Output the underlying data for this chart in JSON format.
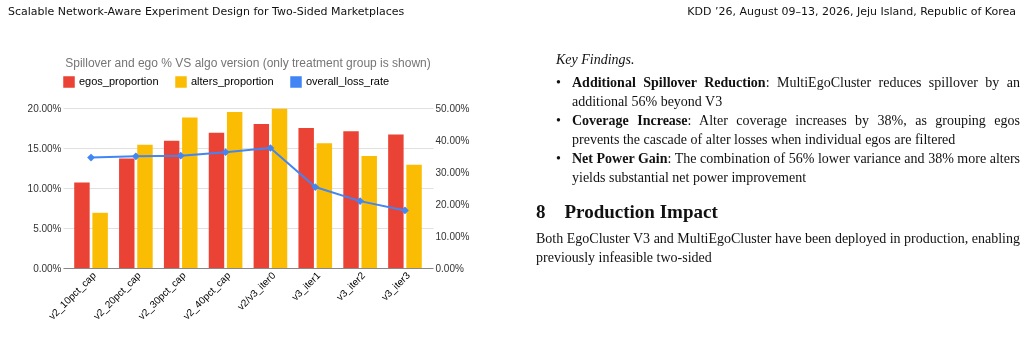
{
  "chart_data": [
    {
      "type": "bar",
      "title": "Spillover and ego % VS algo version (only treatment group is shown)",
      "categories": [
        "v2_10pct_cap",
        "v2_20pct_cap",
        "v2_30pct_cap",
        "v2_40pct_cap",
        "v2/v3_iter0",
        "v3_iter1",
        "v3_iter2",
        "v3_iter3"
      ],
      "series": [
        {
          "name": "egos_proportion",
          "color": "#ea4335",
          "values": [
            10.7,
            13.7,
            15.9,
            16.9,
            18.0,
            17.5,
            17.1,
            16.7
          ]
        },
        {
          "name": "alters_proportion",
          "color": "#fbbc04",
          "values": [
            6.9,
            15.4,
            18.8,
            19.5,
            19.9,
            15.6,
            14.0,
            12.9
          ]
        },
        {
          "name": "overall_loss_rate",
          "color": "#4285f4",
          "type": "line",
          "axis": "y2",
          "marker": "diamond",
          "values": [
            34.5,
            34.9,
            35.1,
            36.2,
            37.5,
            25.3,
            20.9,
            18.0
          ]
        }
      ],
      "ylim": [
        0,
        20
      ],
      "yticks": [
        {
          "value": 0,
          "label": "0.00%"
        },
        {
          "value": 5,
          "label": "5.00%"
        },
        {
          "value": 10,
          "label": "10.00%"
        },
        {
          "value": 15,
          "label": "15.00%"
        },
        {
          "value": 20,
          "label": "20.00%"
        }
      ],
      "y2lim": [
        0,
        50
      ],
      "y2ticks": [
        {
          "value": 0,
          "label": "0.00%"
        },
        {
          "value": 10,
          "label": "10.00%"
        },
        {
          "value": 20,
          "label": "20.00%"
        },
        {
          "value": 30,
          "label": "30.00%"
        },
        {
          "value": 40,
          "label": "40.00%"
        },
        {
          "value": 50,
          "label": "50.00%"
        }
      ],
      "grid": "y",
      "legend": "top"
    },
    {
      "type": "other",
      "annotations": [
        "Scalable Network-Aware Experiment Design for Two-Sided Marketplaces",
        "KDD ’26, August 09–13, 2026, Jeju Island, Republic of Korea",
        "Key Findings.",
        "•",
        "Additional Spillover Reduction",
        ": MultiEgoCluster reduces spillover by an additional 56% beyond V3",
        "•",
        "Coverage Increase",
        ": Alter coverage increases by 38%, as grouping egos prevents the cascade of alter losses when individual egos are filtered",
        "•",
        "Net Power Gain",
        ": The combination of 56% lower variance and 38% more alters yields substantial net power improvement",
        "8 Production Impact",
        "Both EgoCluster V3 and MultiEgoCluster have been deployed in production, enabling previously infeasible two-sided"
      ]
    }
  ]
}
